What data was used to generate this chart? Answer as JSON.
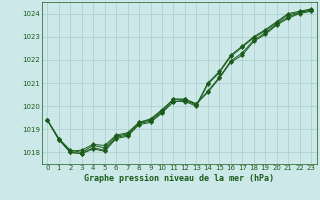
{
  "xlabel": "Graphe pression niveau de la mer (hPa)",
  "xlim": [
    -0.5,
    23.5
  ],
  "ylim": [
    1017.5,
    1024.5
  ],
  "yticks": [
    1018,
    1019,
    1020,
    1021,
    1022,
    1023,
    1024
  ],
  "xticks": [
    0,
    1,
    2,
    3,
    4,
    5,
    6,
    7,
    8,
    9,
    10,
    11,
    12,
    13,
    14,
    15,
    16,
    17,
    18,
    19,
    20,
    21,
    22,
    23
  ],
  "background_color": "#cce8e8",
  "grid_color": "#aacccc",
  "line_color": "#1a5c1a",
  "series": [
    [
      1019.4,
      1018.6,
      1018.1,
      1018.0,
      1018.3,
      1018.2,
      1018.7,
      1018.8,
      1019.3,
      1019.4,
      1019.8,
      1020.3,
      1020.3,
      1020.1,
      1020.6,
      1021.2,
      1021.9,
      1022.2,
      1022.8,
      1023.1,
      1023.5,
      1023.8,
      1024.0,
      1024.1
    ],
    [
      1019.4,
      1018.55,
      1018.05,
      1018.1,
      1018.35,
      1018.3,
      1018.75,
      1018.85,
      1019.3,
      1019.45,
      1019.85,
      1020.3,
      1020.3,
      1020.1,
      1020.65,
      1021.25,
      1021.95,
      1022.3,
      1022.85,
      1023.15,
      1023.55,
      1023.85,
      1024.05,
      1024.15
    ],
    [
      1019.4,
      1018.6,
      1018.0,
      1017.95,
      1018.2,
      1018.1,
      1018.65,
      1018.75,
      1019.25,
      1019.35,
      1019.75,
      1020.2,
      1020.25,
      1020.05,
      1021.0,
      1021.5,
      1022.2,
      1022.6,
      1023.0,
      1023.3,
      1023.65,
      1024.0,
      1024.1,
      1024.2
    ],
    [
      1019.4,
      1018.55,
      1018.0,
      1017.95,
      1018.15,
      1018.05,
      1018.6,
      1018.7,
      1019.2,
      1019.3,
      1019.7,
      1020.2,
      1020.2,
      1020.0,
      1020.95,
      1021.45,
      1022.15,
      1022.55,
      1022.95,
      1023.25,
      1023.6,
      1023.95,
      1024.05,
      1024.15
    ]
  ]
}
